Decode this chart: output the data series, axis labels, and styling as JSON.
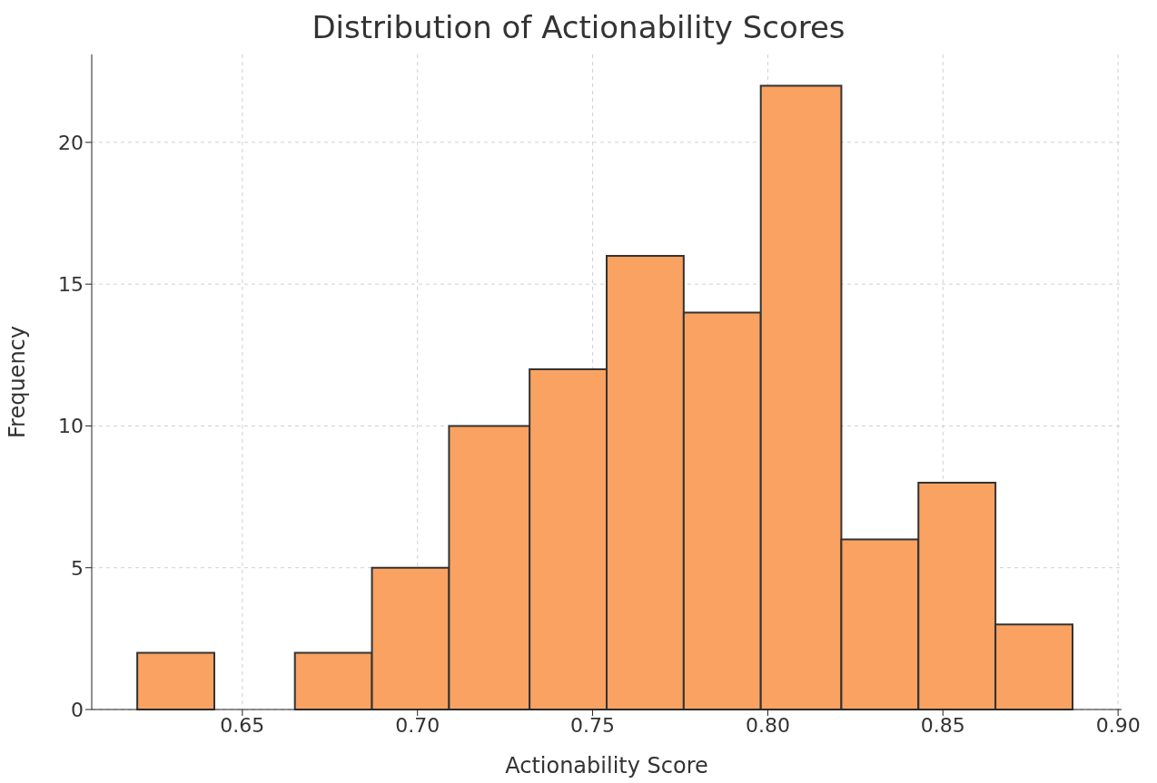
{
  "chart_data": {
    "type": "histogram",
    "title": "Distribution of Actionability Scores",
    "xlabel": "Actionability Score",
    "ylabel": "Frequency",
    "bins": [
      0.62,
      0.642,
      0.665,
      0.687,
      0.709,
      0.732,
      0.754,
      0.776,
      0.798,
      0.821,
      0.843,
      0.865,
      0.887
    ],
    "values": [
      2,
      0,
      2,
      5,
      10,
      12,
      16,
      14,
      22,
      6,
      8,
      3
    ],
    "color": "#f9a262",
    "xlim": [
      0.607,
      0.901
    ],
    "xticks": [
      {
        "value": 0.65,
        "label": "0.65"
      },
      {
        "value": 0.7,
        "label": "0.70"
      },
      {
        "value": 0.75,
        "label": "0.75"
      },
      {
        "value": 0.8,
        "label": "0.80"
      },
      {
        "value": 0.85,
        "label": "0.85"
      },
      {
        "value": 0.9,
        "label": "0.90"
      }
    ],
    "ylim": [
      0,
      23.1
    ],
    "yticks": [
      0,
      5,
      10,
      15,
      20
    ],
    "grid": true
  }
}
